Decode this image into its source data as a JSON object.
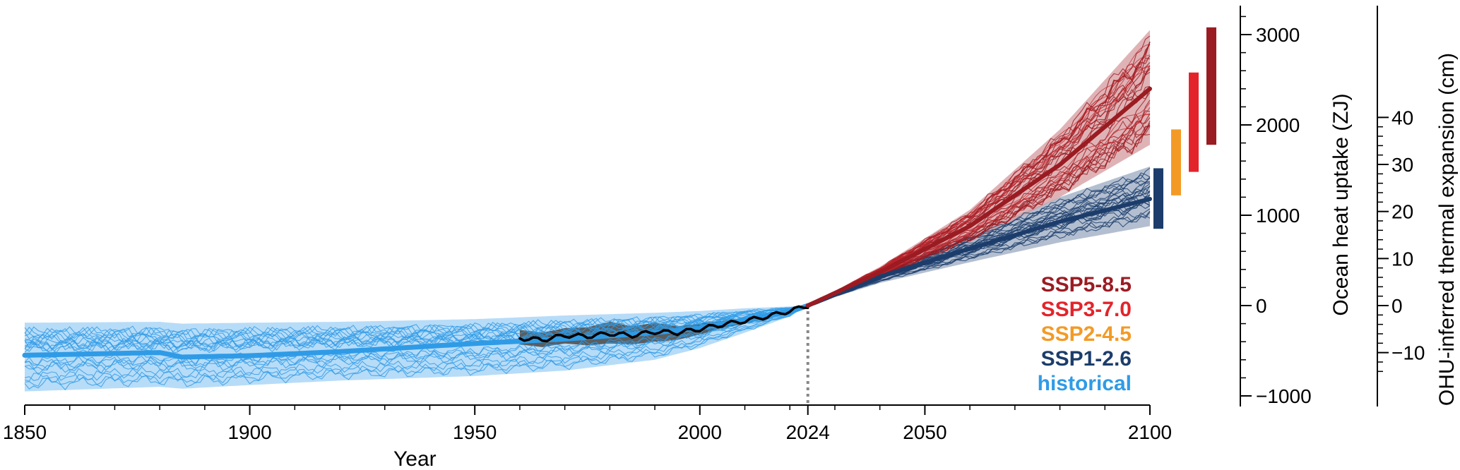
{
  "chart_data": {
    "type": "line",
    "xlabel": "Year",
    "ylabel_left": "Ocean heat uptake (ZJ)",
    "ylabel_right": "OHU-inferred thermal expansion (cm)",
    "xlim": [
      1850,
      2100
    ],
    "ylim": [
      -1100,
      3300
    ],
    "x_ticks": [
      {
        "value": 1850,
        "label": "1850"
      },
      {
        "value": 1900,
        "label": "1900"
      },
      {
        "value": 1950,
        "label": "1950"
      },
      {
        "value": 2000,
        "label": "2000"
      },
      {
        "value": 2024,
        "label": "2024"
      },
      {
        "value": 2050,
        "label": "2050"
      },
      {
        "value": 2100,
        "label": "2100"
      }
    ],
    "y_ticks_left": [
      {
        "value": 3000,
        "label": "3000"
      },
      {
        "value": 2000,
        "label": "2000"
      },
      {
        "value": 1000,
        "label": "1000"
      },
      {
        "value": 0,
        "label": "0"
      },
      {
        "value": -1000,
        "label": "−1000"
      }
    ],
    "y_ticks_right": [
      {
        "value": 40,
        "label": "40"
      },
      {
        "value": 30,
        "label": "30"
      },
      {
        "value": 20,
        "label": "20"
      },
      {
        "value": 10,
        "label": "10"
      },
      {
        "value": 0,
        "label": "0"
      },
      {
        "value": -10,
        "label": "−10"
      }
    ],
    "reference_year": 2024,
    "legend": [
      {
        "label": "SSP5-8.5",
        "color": "#9b1b22"
      },
      {
        "label": "SSP3-7.0",
        "color": "#e3242b"
      },
      {
        "label": "SSP2-4.5",
        "color": "#f39a26"
      },
      {
        "label": "SSP1-2.6",
        "color": "#1c3d6b"
      },
      {
        "label": "historical",
        "color": "#2f9be6"
      }
    ],
    "series": [
      {
        "name": "historical",
        "color": "#2f9be6",
        "x": [
          1850,
          1880,
          1885,
          1900,
          1920,
          1950,
          1970,
          1990,
          2000,
          2010,
          2020,
          2024
        ],
        "mean": [
          -550,
          -520,
          -570,
          -555,
          -510,
          -420,
          -370,
          -300,
          -250,
          -160,
          -70,
          0
        ],
        "lower": [
          -950,
          -900,
          -920,
          -880,
          -830,
          -780,
          -720,
          -600,
          -470,
          -300,
          -120,
          0
        ],
        "upper": [
          -190,
          -180,
          -200,
          -190,
          -180,
          -150,
          -110,
          -80,
          -60,
          -30,
          -10,
          0
        ]
      },
      {
        "name": "observations",
        "color": "#000000",
        "x": [
          1960,
          1965,
          1970,
          1975,
          1980,
          1985,
          1990,
          1995,
          2000,
          2005,
          2010,
          2015,
          2020,
          2024
        ],
        "mean": [
          -360,
          -380,
          -330,
          -340,
          -310,
          -330,
          -290,
          -300,
          -260,
          -210,
          -170,
          -120,
          -60,
          0
        ],
        "lower": [
          -430,
          -460,
          -420,
          -440,
          -420,
          -430,
          -400,
          -380,
          -320,
          -250,
          -200,
          -140,
          -70,
          0
        ],
        "upper": [
          -270,
          -300,
          -250,
          -240,
          -180,
          -230,
          -190,
          -230,
          -200,
          -170,
          -140,
          -100,
          -50,
          0
        ]
      },
      {
        "name": "SSP1-2.6",
        "color": "#1c3d6b",
        "x": [
          2024,
          2040,
          2060,
          2080,
          2100
        ],
        "mean": [
          0,
          320,
          630,
          930,
          1180
        ],
        "lower": [
          0,
          250,
          480,
          700,
          880
        ],
        "upper": [
          0,
          380,
          780,
          1200,
          1540
        ]
      },
      {
        "name": "SSP5-8.5",
        "color": "#9b1b22",
        "x": [
          2024,
          2040,
          2060,
          2080,
          2100
        ],
        "mean": [
          0,
          370,
          880,
          1560,
          2400
        ],
        "lower": [
          0,
          310,
          700,
          1200,
          1780
        ],
        "upper": [
          0,
          430,
          1060,
          1950,
          3050
        ]
      }
    ],
    "range_bars_2100": [
      {
        "name": "SSP1-2.6",
        "color": "#1c3d6b",
        "low": 850,
        "high": 1520
      },
      {
        "name": "SSP2-4.5",
        "color": "#f39a26",
        "low": 1220,
        "high": 1950
      },
      {
        "name": "SSP3-7.0",
        "color": "#e3242b",
        "low": 1480,
        "high": 2580
      },
      {
        "name": "SSP5-8.5",
        "color": "#9b1b22",
        "low": 1780,
        "high": 3080
      }
    ]
  }
}
